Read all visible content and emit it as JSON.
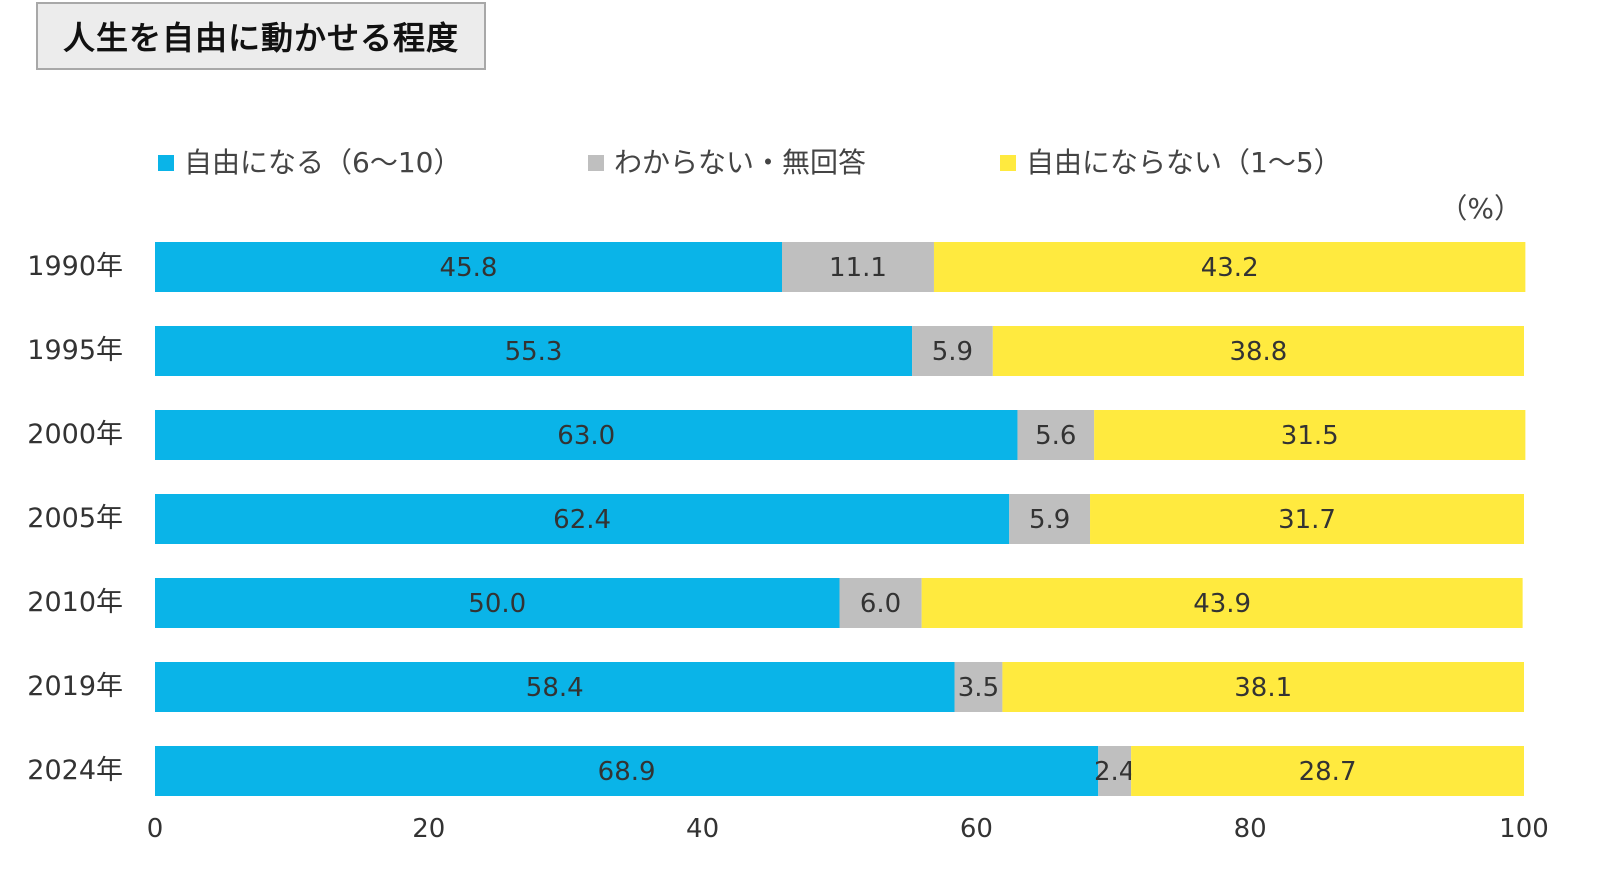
{
  "title": "人生を自由に動かせる程度",
  "chart_data": {
    "type": "bar",
    "orientation": "horizontal",
    "stacked": true,
    "unit_label": "（%）",
    "categories": [
      "1990年",
      "1995年",
      "2000年",
      "2005年",
      "2010年",
      "2019年",
      "2024年"
    ],
    "series": [
      {
        "name": "自由になる（6〜10）",
        "color": "#0ab4e8",
        "values": [
          45.8,
          55.3,
          63.0,
          62.4,
          50.0,
          58.4,
          68.9
        ],
        "labels": [
          "45.8",
          "55.3",
          "63.0",
          "62.4",
          "50.0",
          "58.4",
          "68.9"
        ]
      },
      {
        "name": "わからない・無回答",
        "color": "#bfbfbf",
        "values": [
          11.1,
          5.9,
          5.6,
          5.9,
          6.0,
          3.5,
          2.4
        ],
        "labels": [
          "11.1",
          "5.9",
          "5.6",
          "5.9",
          "6.0",
          "3.5",
          "2.4"
        ]
      },
      {
        "name": "自由にならない（1〜5）",
        "color": "#ffea3f",
        "values": [
          43.2,
          38.8,
          31.5,
          31.7,
          43.9,
          38.1,
          28.7
        ],
        "labels": [
          "43.2",
          "38.8",
          "31.5",
          "31.7",
          "43.9",
          "38.1",
          "28.7"
        ]
      }
    ],
    "xlim": [
      0,
      100
    ],
    "xticks": [
      "0",
      "20",
      "40",
      "60",
      "80",
      "100"
    ],
    "grid": false,
    "legend_position": "top"
  }
}
